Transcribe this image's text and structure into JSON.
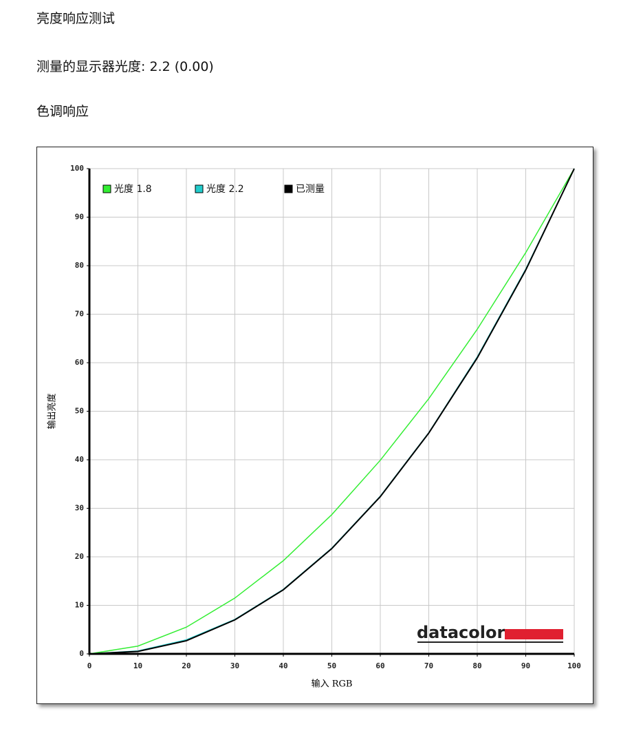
{
  "page": {
    "heading": "亮度响应测试",
    "gamma_text": "测量的显示器光度: 2.2 (0.00)",
    "subheading": "色调响应"
  },
  "chart_data": {
    "type": "line",
    "xlabel": "输入 RGB",
    "ylabel": "输出亮度",
    "brand": "datacolor",
    "x": [
      0,
      10,
      20,
      30,
      40,
      50,
      60,
      70,
      80,
      90,
      100
    ],
    "series": [
      {
        "name": "光度 1.8",
        "color": "#33ee33",
        "values": [
          0,
          1.6,
          5.5,
          11.5,
          19.2,
          28.7,
          39.9,
          52.6,
          66.9,
          82.7,
          100
        ]
      },
      {
        "name": "光度 2.2",
        "color": "#22cccc",
        "values": [
          0,
          0.6,
          2.9,
          7.1,
          13.3,
          21.8,
          32.5,
          45.6,
          61.2,
          79.3,
          100
        ]
      },
      {
        "name": "已测量",
        "color": "#000000",
        "values": [
          0,
          0.5,
          2.7,
          7.0,
          13.2,
          21.7,
          32.4,
          45.5,
          61.0,
          79.1,
          100
        ]
      }
    ],
    "xlim": [
      0,
      100
    ],
    "ylim": [
      0,
      100
    ],
    "xticks": [
      0,
      10,
      20,
      30,
      40,
      50,
      60,
      70,
      80,
      90,
      100
    ],
    "yticks": [
      0,
      10,
      20,
      30,
      40,
      50,
      60,
      70,
      80,
      90,
      100
    ],
    "grid": true,
    "legend": "upper left"
  }
}
